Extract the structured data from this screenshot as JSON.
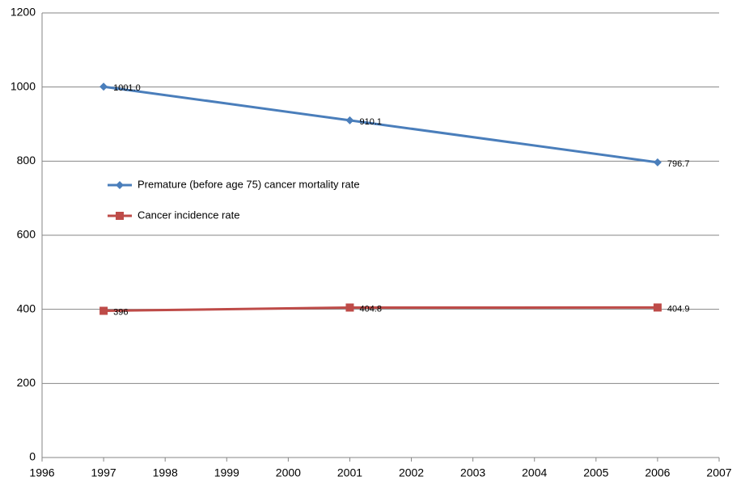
{
  "chart_data": {
    "type": "line",
    "x": [
      1997,
      2001,
      2006
    ],
    "series": [
      {
        "name": "Premature (before age 75) cancer mortality rate",
        "color": "#4a7ebb",
        "marker": "diamond",
        "values": [
          1001.0,
          910.1,
          796.7
        ],
        "value_labels": [
          "1001.0",
          "910.1",
          "796.7"
        ]
      },
      {
        "name": "Cancer incidence rate",
        "color": "#be4b48",
        "marker": "square",
        "values": [
          396,
          404.8,
          404.9
        ]
      }
    ],
    "xlim": [
      1996,
      2007
    ],
    "xticks": [
      1996,
      1997,
      1998,
      1999,
      2000,
      2001,
      2002,
      2003,
      2004,
      2005,
      2006,
      2007
    ],
    "ylim": [
      0,
      1200
    ],
    "yticks": [
      0,
      200,
      400,
      600,
      800,
      1000,
      1200
    ],
    "grid": true
  }
}
